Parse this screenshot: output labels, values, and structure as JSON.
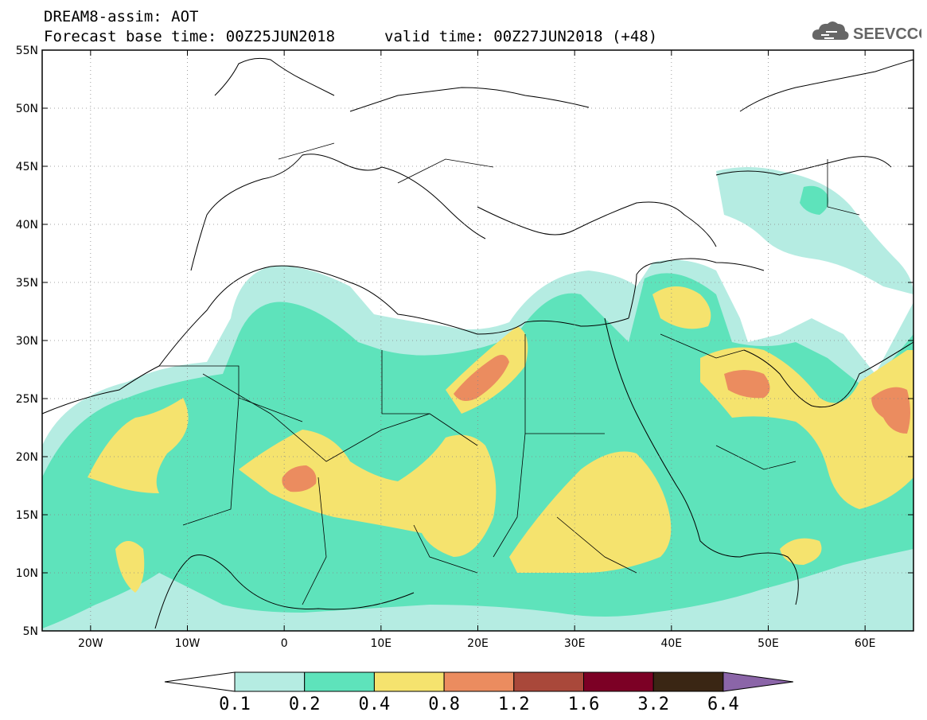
{
  "header": {
    "title_line1": "DREAM8-assim: AOT",
    "title_line2_base": "Forecast base time: 00Z25JUN2018",
    "title_line2_valid": "valid time: 00Z27JUN2018 (+48)",
    "logo_text": "SEEVCCC"
  },
  "map": {
    "lon_range": [
      -25,
      65
    ],
    "lat_range": [
      5,
      55
    ],
    "lat_ticks": [
      {
        "value": 55,
        "label": "55N"
      },
      {
        "value": 50,
        "label": "50N"
      },
      {
        "value": 45,
        "label": "45N"
      },
      {
        "value": 40,
        "label": "40N"
      },
      {
        "value": 35,
        "label": "35N"
      },
      {
        "value": 30,
        "label": "30N"
      },
      {
        "value": 25,
        "label": "25N"
      },
      {
        "value": 20,
        "label": "20N"
      },
      {
        "value": 15,
        "label": "15N"
      },
      {
        "value": 10,
        "label": "10N"
      },
      {
        "value": 5,
        "label": "5N"
      }
    ],
    "lon_ticks": [
      {
        "value": -20,
        "label": "20W"
      },
      {
        "value": -10,
        "label": "10W"
      },
      {
        "value": 0,
        "label": "0"
      },
      {
        "value": 10,
        "label": "10E"
      },
      {
        "value": 20,
        "label": "20E"
      },
      {
        "value": 30,
        "label": "30E"
      },
      {
        "value": 40,
        "label": "40E"
      },
      {
        "value": 50,
        "label": "50E"
      },
      {
        "value": 60,
        "label": "60E"
      }
    ],
    "grid": "dotted"
  },
  "colorbar": {
    "thresholds": [
      "0.1",
      "0.2",
      "0.4",
      "0.8",
      "1.2",
      "1.6",
      "3.2",
      "6.4"
    ],
    "colors": [
      "#ffffff",
      "#b5ece2",
      "#5ee3bb",
      "#f5e36e",
      "#eb8c5f",
      "#a9483a",
      "#7c0025",
      "#3a2614",
      "#8b65a8"
    ],
    "colors_comment_free": true
  },
  "colors": {
    "c01": "#b5ece2",
    "c02": "#5ee3bb",
    "c04": "#f5e36e",
    "c08": "#eb8c5f"
  }
}
